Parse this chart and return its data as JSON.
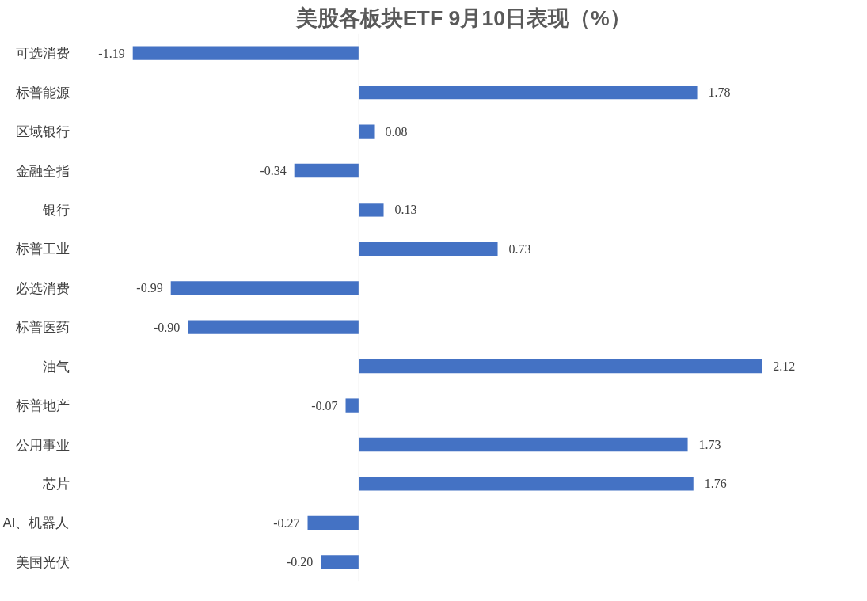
{
  "chart_data": {
    "type": "bar",
    "orientation": "horizontal",
    "title": "美股各板块ETF  9月10日表现（%）",
    "categories": [
      "可选消费",
      "标普能源",
      "区域银行",
      "金融全指",
      "银行",
      "标普工业",
      "必选消费",
      "标普医药",
      "油气",
      "标普地产",
      "公用事业",
      "芯片",
      "AI、机器人",
      "美国光伏"
    ],
    "values": [
      -1.19,
      1.78,
      0.08,
      -0.34,
      0.13,
      0.73,
      -0.99,
      -0.9,
      2.12,
      -0.07,
      1.73,
      1.76,
      -0.27,
      -0.2
    ],
    "value_labels": [
      "-1.19",
      "1.78",
      "0.08",
      "-0.34",
      "0.13",
      "0.73",
      "-0.99",
      "-0.90",
      "2.12",
      "-0.07",
      "1.73",
      "1.76",
      "-0.27",
      "-0.20"
    ],
    "color": "#4472c4",
    "grid": false
  }
}
